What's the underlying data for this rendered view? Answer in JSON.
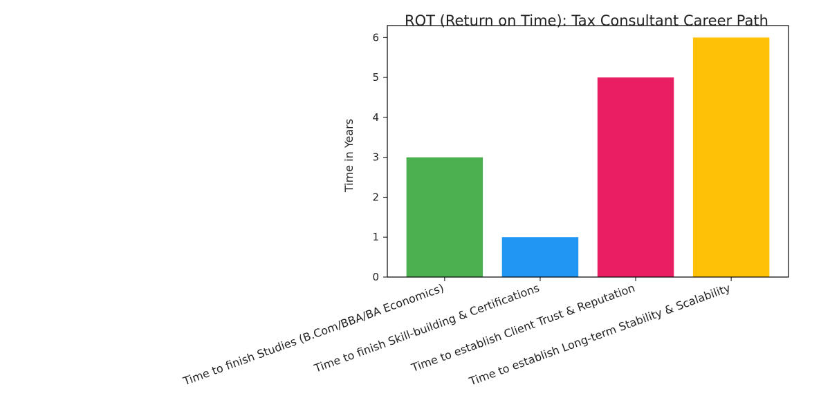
{
  "chart_data": {
    "type": "bar",
    "title": "ROT (Return on Time): Tax Consultant Career Path",
    "xlabel": "",
    "ylabel": "Time in Years",
    "categories": [
      "Time to finish Studies (B.Com/BBA/BA Economics)",
      "Time to finish Skill-building & Certifications",
      "Time to establish Client Trust & Reputation",
      "Time to establish Long-term Stability & Scalability"
    ],
    "values": [
      3,
      1,
      5,
      6
    ],
    "colors": [
      "#4caf50",
      "#2196f3",
      "#e91e63",
      "#ffc107"
    ],
    "ylim": [
      0,
      6.3
    ],
    "yticks": [
      0,
      1,
      2,
      3,
      4,
      5,
      6
    ],
    "grid": false,
    "legend": "none"
  }
}
